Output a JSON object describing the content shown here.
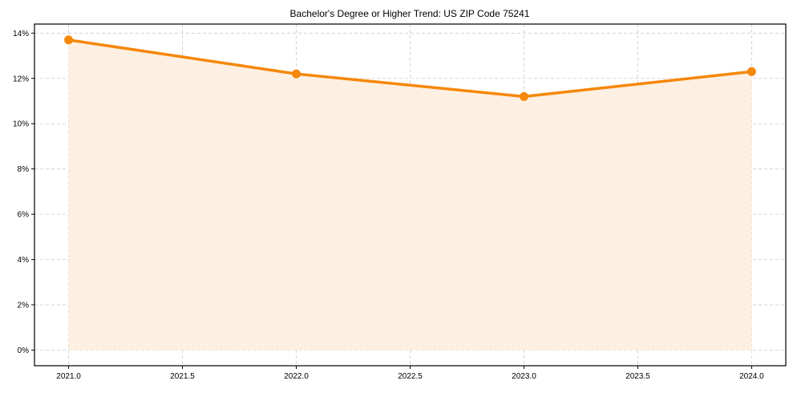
{
  "chart_data": {
    "type": "area",
    "title": "Bachelor's Degree or Higher Trend: US ZIP Code 75241",
    "xlabel": "",
    "ylabel": "",
    "x": [
      2021.0,
      2022.0,
      2023.0,
      2024.0
    ],
    "series": [
      {
        "name": "Bachelor's Degree or Higher",
        "values": [
          13.7,
          12.2,
          11.2,
          12.3
        ],
        "color": "#f5870a",
        "fill": "#fdf0e2"
      }
    ],
    "xlim": [
      2020.85,
      2024.15
    ],
    "ylim": [
      -0.69,
      14.4
    ],
    "xticks": [
      2021.0,
      2021.5,
      2022.0,
      2022.5,
      2023.0,
      2023.5,
      2024.0
    ],
    "xtick_labels": [
      "2021.0",
      "2021.5",
      "2022.0",
      "2022.5",
      "2023.0",
      "2023.5",
      "2024.0"
    ],
    "yticks": [
      0,
      2,
      4,
      6,
      8,
      10,
      12,
      14
    ],
    "ytick_labels": [
      "0%",
      "2%",
      "4%",
      "6%",
      "8%",
      "10%",
      "12%",
      "14%"
    ],
    "grid": true,
    "grid_style": "dashed",
    "legend": false
  }
}
